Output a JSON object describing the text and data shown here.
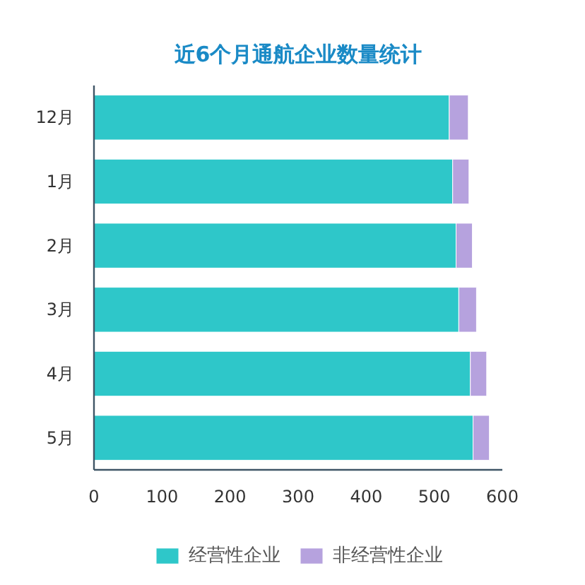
{
  "chart_data": {
    "type": "bar",
    "title": "近6个月通航企业数量统计",
    "orientation": "horizontal",
    "stacked": true,
    "categories": [
      "12月",
      "1月",
      "2月",
      "3月",
      "4月",
      "5月"
    ],
    "series": [
      {
        "name": "经营性企业",
        "color": "#2ec7c9",
        "values": [
          522,
          527,
          532,
          536,
          553,
          557
        ]
      },
      {
        "name": "非经营性企业",
        "color": "#b6a2de",
        "values": [
          28,
          24,
          24,
          26,
          24,
          24
        ]
      }
    ],
    "xlim": [
      0,
      600
    ],
    "xticks": [
      0,
      100,
      200,
      300,
      400,
      500,
      600
    ],
    "grid": false,
    "legend": "bottom"
  }
}
